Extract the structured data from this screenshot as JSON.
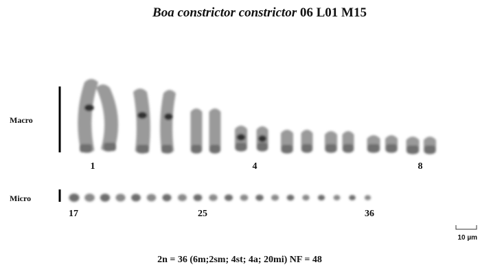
{
  "header": {
    "title_italic": "Boa constrictor constrictor",
    "title_rest": "06 L01 M15"
  },
  "rows": {
    "macro": {
      "label": "Macro",
      "numbers": [
        "1",
        "4",
        "8"
      ]
    },
    "micro": {
      "label": "Micro",
      "numbers": [
        "17",
        "25",
        "36"
      ]
    }
  },
  "scale_bar": {
    "label": "10 µm"
  },
  "caption": "2n = 36 (6m;2sm; 4st; 4a; 20mi) NF = 48"
}
